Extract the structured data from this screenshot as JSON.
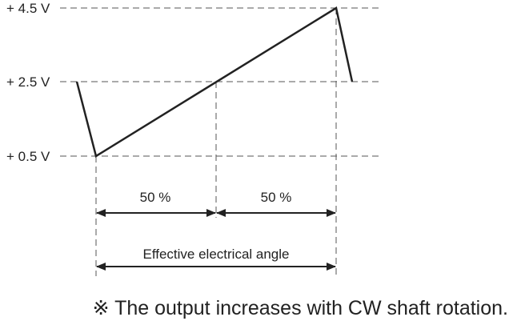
{
  "voltage_labels": {
    "high": "+ 4.5 V",
    "mid": "+ 2.5 V",
    "low": "+ 0.5 V"
  },
  "segments": {
    "first": "50 %",
    "second": "50 %"
  },
  "range_label": "Effective electrical angle",
  "note": "※ The output increases with CW shaft rotation.",
  "colors": {
    "line": "#222222",
    "dash": "#555555"
  }
}
